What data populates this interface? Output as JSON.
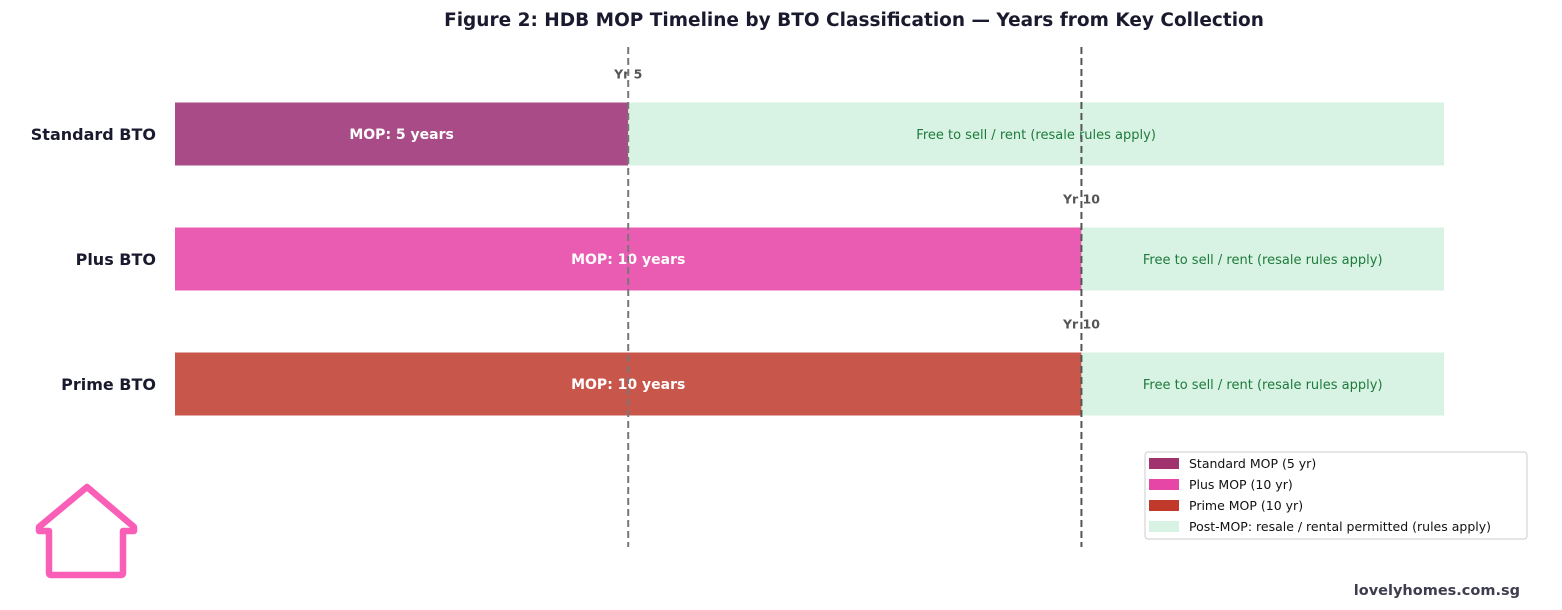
{
  "chart_data": {
    "type": "bar",
    "orientation": "horizontal-stacked",
    "title": "Figure 2: HDB MOP Timeline by BTO Classification — Years from Key Collection",
    "xlim": [
      0,
      14
    ],
    "ylabel": "",
    "xlabel": "",
    "grid": false,
    "categories": [
      "Standard BTO",
      "Plus BTO",
      "Prime BTO"
    ],
    "mop_years": [
      5,
      10,
      10
    ],
    "post_mop_end": 14,
    "mop_labels": [
      "MOP: 5 years",
      "MOP: 10 years",
      "MOP: 10 years"
    ],
    "post_label": "Free to sell / rent (resale rules apply)",
    "marker_labels": [
      "Yr 5",
      "Yr 10",
      "Yr 10"
    ],
    "vlines": [
      5,
      10
    ],
    "colors": [
      "#a84b87",
      "#e95cb2",
      "#c9564b"
    ],
    "post_color": "#d8f3e3",
    "legend_position": "lower-right",
    "legend": [
      {
        "label": "Standard MOP (5 yr)",
        "color": "#a0336e"
      },
      {
        "label": "Plus MOP (10 yr)",
        "color": "#e646a6"
      },
      {
        "label": "Prime MOP (10 yr)",
        "color": "#c0392b"
      },
      {
        "label": "Post-MOP: resale / rental permitted (rules apply)",
        "color": "#d8f3e3"
      }
    ]
  },
  "logo": {
    "icon": "house-icon",
    "color": "#f95fb7"
  },
  "watermark": "lovelyhomes.com.sg"
}
